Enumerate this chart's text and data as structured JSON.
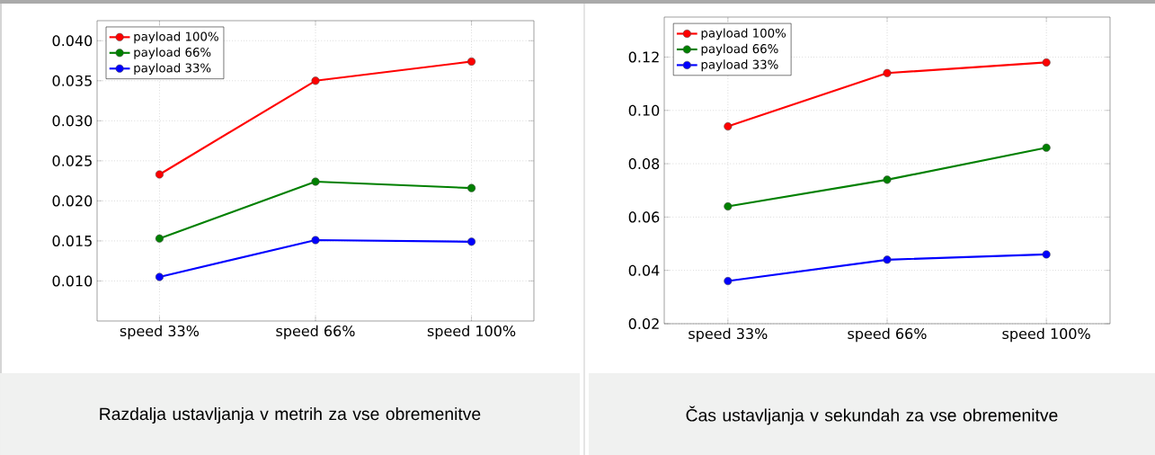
{
  "chart_data": [
    {
      "type": "line",
      "title": "Razdalja ustavljanja v metrih za vse obremenitve",
      "categories": [
        "speed 33%",
        "speed 66%",
        "speed 100%"
      ],
      "series": [
        {
          "name": "payload 100%",
          "color": "#ff0000",
          "values": [
            0.0233,
            0.035,
            0.0374
          ]
        },
        {
          "name": "payload 66%",
          "color": "#008000",
          "values": [
            0.0153,
            0.0224,
            0.0216
          ]
        },
        {
          "name": "payload 33%",
          "color": "#0000ff",
          "values": [
            0.0105,
            0.0151,
            0.0149
          ]
        }
      ],
      "ylim": [
        0.005,
        0.0425
      ],
      "yticks": [
        {
          "value": 0.01,
          "label": "0.010"
        },
        0.015,
        {
          "value": 0.02,
          "label": "0.020"
        },
        0.025,
        {
          "value": 0.03,
          "label": "0.030"
        },
        0.035,
        {
          "value": 0.04,
          "label": "0.040"
        }
      ],
      "grid": true,
      "legend": "top left",
      "marker": "circle",
      "line_style": "solid"
    },
    {
      "type": "line",
      "title": "Čas ustavljanja v sekundah za vse obremenitve",
      "categories": [
        "speed 33%",
        "speed 66%",
        "speed 100%"
      ],
      "series": [
        {
          "name": "payload 100%",
          "color": "#ff0000",
          "values": [
            0.094,
            0.114,
            0.118
          ]
        },
        {
          "name": "payload 66%",
          "color": "#008000",
          "values": [
            0.064,
            0.074,
            0.086
          ]
        },
        {
          "name": "payload 33%",
          "color": "#0000ff",
          "values": [
            0.036,
            0.044,
            0.046
          ]
        }
      ],
      "ylim": [
        0.02,
        0.135
      ],
      "yticks": [
        0.02,
        0.04,
        0.06,
        0.08,
        {
          "value": 0.1,
          "label": "0.10"
        },
        0.12
      ],
      "grid": true,
      "legend": "top left",
      "marker": "circle",
      "line_style": "solid"
    }
  ]
}
